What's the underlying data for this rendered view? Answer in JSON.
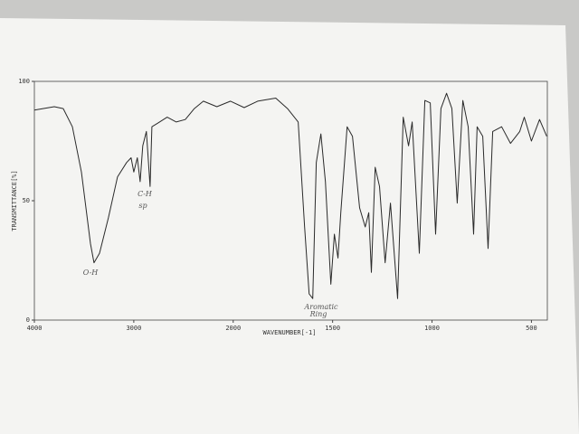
{
  "chart_data": {
    "type": "line",
    "x_label": "WAVENUMBER[-1]",
    "y_label": "TRANSMITTANCE[%]",
    "xlim": [
      4000,
      420
    ],
    "ylim": [
      0,
      100
    ],
    "xscale_break": 2000,
    "xticks": [
      4000,
      3000,
      2000,
      1500,
      1000,
      500
    ],
    "yticks": [
      0,
      50,
      100
    ],
    "annotations": [
      "O-H",
      "C-H",
      "sp",
      "Aromatic",
      "Ring"
    ],
    "x": [
      4000,
      3800,
      3710,
      3618,
      3527,
      3436,
      3400,
      3345,
      3255,
      3164,
      3073,
      3027,
      3000,
      2964,
      2936,
      2910,
      2873,
      2836,
      2818,
      2755,
      2664,
      2573,
      2482,
      2391,
      2300,
      2164,
      2027,
      1945,
      1877,
      1786,
      1727,
      1673,
      1641,
      1618,
      1600,
      1582,
      1559,
      1536,
      1509,
      1491,
      1473,
      1459,
      1427,
      1400,
      1364,
      1336,
      1318,
      1305,
      1286,
      1264,
      1236,
      1209,
      1173,
      1145,
      1118,
      1100,
      1064,
      1036,
      1009,
      982,
      955,
      927,
      900,
      873,
      845,
      818,
      791,
      773,
      745,
      718,
      695,
      650,
      605,
      559,
      536,
      500,
      459,
      423
    ],
    "series": [
      {
        "color": "#2a2a2a",
        "values": [
          88,
          89.4,
          88.6,
          81,
          62,
          32,
          24,
          28,
          43,
          60,
          66,
          68,
          62,
          68,
          58,
          73,
          79,
          56,
          81,
          82.6,
          85,
          83,
          84,
          88.6,
          91.7,
          89.4,
          91.7,
          89,
          91.7,
          93,
          88.6,
          83,
          39,
          11,
          9,
          66,
          78,
          58,
          15,
          36,
          26,
          45,
          81,
          77,
          47,
          39,
          45,
          20,
          64,
          56,
          24,
          49,
          9,
          85,
          73,
          83,
          28,
          92,
          91,
          36,
          88.6,
          95,
          88.6,
          49,
          92,
          81,
          36,
          81,
          77,
          30,
          79,
          81,
          74,
          79,
          85,
          75,
          84,
          77
        ]
      }
    ]
  }
}
